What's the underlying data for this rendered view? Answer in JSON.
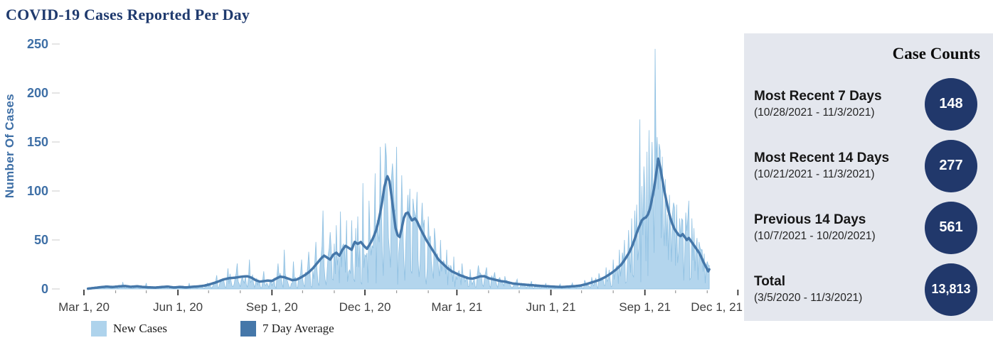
{
  "chart": {
    "title": "COVID-19 Cases Reported Per Day",
    "title_color": "#1f3a6e",
    "y_axis_label": "Number Of Cases",
    "legend": [
      {
        "label": "New Cases",
        "color": "#aed3ec"
      },
      {
        "label": "7 Day Average",
        "color": "#4577a9"
      }
    ]
  },
  "chart_data": {
    "type": "area",
    "title": "COVID-19 Cases Reported Per Day",
    "xlabel": "",
    "ylabel": "Number Of Cases",
    "ylim": [
      0,
      250
    ],
    "y_ticks": [
      0,
      50,
      100,
      150,
      200,
      250
    ],
    "grid": false,
    "legend_position": "bottom",
    "x_tick_labels": [
      "Mar 1, 20",
      "Jun 1, 20",
      "Sep 1, 20",
      "Dec 1, 20",
      "Mar 1, 21",
      "Jun 1, 21",
      "Sep 1, 21",
      "Dec 1, 21"
    ],
    "x_tick_days": [
      0,
      92,
      184,
      275,
      365,
      457,
      549,
      640
    ],
    "x_minor_tick_days": [
      31,
      61,
      122,
      153,
      214,
      245,
      306,
      337,
      396,
      426,
      487,
      518,
      579,
      610
    ],
    "start_day": 4,
    "end_day": 612,
    "series": [
      {
        "name": "New Cases",
        "type": "area",
        "color": "#b3d5ed",
        "edge": "#8fc0e2"
      },
      {
        "name": "7 Day Average",
        "type": "line",
        "color": "#4577a9",
        "width": 3.5,
        "points": [
          [
            4,
            0.3
          ],
          [
            10,
            1
          ],
          [
            16,
            1.8
          ],
          [
            22,
            2.4
          ],
          [
            28,
            2
          ],
          [
            34,
            2.6
          ],
          [
            40,
            3
          ],
          [
            46,
            2.2
          ],
          [
            52,
            2.7
          ],
          [
            58,
            2
          ],
          [
            64,
            1.6
          ],
          [
            70,
            1.4
          ],
          [
            76,
            2
          ],
          [
            82,
            2.4
          ],
          [
            88,
            1.5
          ],
          [
            94,
            2.1
          ],
          [
            100,
            1.6
          ],
          [
            106,
            2.2
          ],
          [
            112,
            2.6
          ],
          [
            118,
            3.4
          ],
          [
            124,
            5
          ],
          [
            130,
            7
          ],
          [
            136,
            9.5
          ],
          [
            142,
            11
          ],
          [
            148,
            11.5
          ],
          [
            154,
            12.5
          ],
          [
            160,
            13
          ],
          [
            164,
            11.5
          ],
          [
            168,
            9
          ],
          [
            172,
            7.5
          ],
          [
            176,
            8
          ],
          [
            180,
            8.5
          ],
          [
            184,
            8.2
          ],
          [
            188,
            10.5
          ],
          [
            192,
            12.5
          ],
          [
            196,
            12
          ],
          [
            200,
            10.5
          ],
          [
            204,
            9
          ],
          [
            208,
            9.5
          ],
          [
            212,
            11.5
          ],
          [
            216,
            14
          ],
          [
            220,
            17
          ],
          [
            224,
            21
          ],
          [
            228,
            26
          ],
          [
            232,
            31
          ],
          [
            235,
            34
          ],
          [
            238,
            32
          ],
          [
            241,
            30
          ],
          [
            244,
            35
          ],
          [
            247,
            37
          ],
          [
            250,
            34
          ],
          [
            253,
            40
          ],
          [
            256,
            44
          ],
          [
            259,
            42
          ],
          [
            262,
            40
          ],
          [
            265,
            48
          ],
          [
            268,
            46
          ],
          [
            271,
            48
          ],
          [
            274,
            44
          ],
          [
            277,
            41
          ],
          [
            280,
            46
          ],
          [
            283,
            52
          ],
          [
            286,
            60
          ],
          [
            288,
            68
          ],
          [
            290,
            78
          ],
          [
            292,
            90
          ],
          [
            294,
            104
          ],
          [
            296,
            112
          ],
          [
            297,
            115
          ],
          [
            299,
            110
          ],
          [
            301,
            95
          ],
          [
            303,
            78
          ],
          [
            305,
            62
          ],
          [
            307,
            55
          ],
          [
            309,
            53
          ],
          [
            311,
            62
          ],
          [
            313,
            72
          ],
          [
            315,
            77
          ],
          [
            317,
            78
          ],
          [
            319,
            74
          ],
          [
            321,
            70
          ],
          [
            324,
            72
          ],
          [
            326,
            69
          ],
          [
            329,
            62
          ],
          [
            332,
            56
          ],
          [
            335,
            50
          ],
          [
            338,
            45
          ],
          [
            341,
            40
          ],
          [
            344,
            35
          ],
          [
            347,
            30
          ],
          [
            350,
            27
          ],
          [
            353,
            24
          ],
          [
            356,
            21
          ],
          [
            360,
            18
          ],
          [
            364,
            16
          ],
          [
            368,
            14
          ],
          [
            372,
            12.5
          ],
          [
            376,
            11
          ],
          [
            380,
            10.5
          ],
          [
            384,
            11.5
          ],
          [
            388,
            13
          ],
          [
            392,
            13
          ],
          [
            396,
            11
          ],
          [
            400,
            10
          ],
          [
            404,
            9
          ],
          [
            408,
            8
          ],
          [
            412,
            7.5
          ],
          [
            416,
            6.5
          ],
          [
            420,
            5.5
          ],
          [
            425,
            5
          ],
          [
            430,
            4.5
          ],
          [
            436,
            4
          ],
          [
            442,
            3.5
          ],
          [
            448,
            3
          ],
          [
            455,
            2.6
          ],
          [
            462,
            2.2
          ],
          [
            468,
            2
          ],
          [
            474,
            2.4
          ],
          [
            480,
            2.8
          ],
          [
            486,
            3.5
          ],
          [
            492,
            5
          ],
          [
            498,
            7
          ],
          [
            504,
            9
          ],
          [
            510,
            12
          ],
          [
            516,
            16
          ],
          [
            521,
            20
          ],
          [
            526,
            25
          ],
          [
            530,
            31
          ],
          [
            534,
            38
          ],
          [
            537,
            45
          ],
          [
            540,
            54
          ],
          [
            542,
            60
          ],
          [
            544,
            65
          ],
          [
            546,
            70
          ],
          [
            548,
            72
          ],
          [
            550,
            73
          ],
          [
            552,
            76
          ],
          [
            554,
            82
          ],
          [
            556,
            92
          ],
          [
            558,
            103
          ],
          [
            559,
            110
          ],
          [
            560,
            117
          ],
          [
            561,
            125
          ],
          [
            562,
            133
          ],
          [
            563,
            129
          ],
          [
            564,
            124
          ],
          [
            566,
            112
          ],
          [
            568,
            100
          ],
          [
            570,
            90
          ],
          [
            572,
            80
          ],
          [
            574,
            72
          ],
          [
            576,
            66
          ],
          [
            578,
            61
          ],
          [
            580,
            58
          ],
          [
            582,
            55
          ],
          [
            584,
            54
          ],
          [
            586,
            56
          ],
          [
            588,
            53
          ],
          [
            590,
            50
          ],
          [
            592,
            52
          ],
          [
            594,
            49
          ],
          [
            596,
            46
          ],
          [
            598,
            43
          ],
          [
            600,
            40
          ],
          [
            602,
            37
          ],
          [
            604,
            33
          ],
          [
            606,
            28
          ],
          [
            608,
            24
          ],
          [
            610,
            20
          ],
          [
            611,
            18
          ],
          [
            612,
            20
          ]
        ]
      }
    ],
    "daily_spikes": [
      [
        38,
        7
      ],
      [
        61,
        6
      ],
      [
        103,
        6
      ],
      [
        130,
        14
      ],
      [
        141,
        21
      ],
      [
        150,
        26
      ],
      [
        162,
        30
      ],
      [
        176,
        18
      ],
      [
        190,
        26
      ],
      [
        196,
        40
      ],
      [
        205,
        28
      ],
      [
        213,
        30
      ],
      [
        220,
        38
      ],
      [
        227,
        48
      ],
      [
        234,
        80
      ],
      [
        241,
        58
      ],
      [
        247,
        65
      ],
      [
        251,
        79
      ],
      [
        257,
        70
      ],
      [
        262,
        70
      ],
      [
        268,
        74
      ],
      [
        273,
        108
      ],
      [
        279,
        90
      ],
      [
        285,
        118
      ],
      [
        290,
        145
      ],
      [
        296,
        136
      ],
      [
        302,
        128
      ],
      [
        306,
        145
      ],
      [
        311,
        116
      ],
      [
        317,
        96
      ],
      [
        322,
        92
      ],
      [
        326,
        99
      ],
      [
        331,
        88
      ],
      [
        337,
        74
      ],
      [
        343,
        62
      ],
      [
        349,
        50
      ],
      [
        355,
        40
      ],
      [
        362,
        33
      ],
      [
        370,
        26
      ],
      [
        378,
        20
      ],
      [
        386,
        24
      ],
      [
        394,
        22
      ],
      [
        402,
        17
      ],
      [
        412,
        13
      ],
      [
        424,
        10
      ],
      [
        438,
        8
      ],
      [
        452,
        6
      ],
      [
        466,
        5
      ],
      [
        478,
        6
      ],
      [
        490,
        9
      ],
      [
        497,
        12
      ],
      [
        504,
        16
      ],
      [
        511,
        22
      ],
      [
        518,
        30
      ],
      [
        524,
        40
      ],
      [
        529,
        50
      ],
      [
        533,
        60
      ],
      [
        536,
        72
      ],
      [
        539,
        80
      ],
      [
        541,
        86
      ],
      [
        544,
        173
      ],
      [
        546,
        105
      ],
      [
        548,
        125
      ],
      [
        551,
        140
      ],
      [
        553,
        162
      ],
      [
        556,
        150
      ],
      [
        559,
        245
      ],
      [
        561,
        155
      ],
      [
        563,
        148
      ],
      [
        566,
        135
      ],
      [
        569,
        112
      ],
      [
        573,
        96
      ],
      [
        577,
        88
      ],
      [
        580,
        86
      ],
      [
        583,
        72
      ],
      [
        586,
        70
      ],
      [
        589,
        78
      ],
      [
        592,
        90
      ],
      [
        595,
        72
      ],
      [
        597,
        62
      ],
      [
        600,
        52
      ],
      [
        602,
        48
      ],
      [
        605,
        40
      ],
      [
        607,
        36
      ],
      [
        610,
        28
      ],
      [
        612,
        24
      ]
    ]
  },
  "panel": {
    "title": "Case Counts",
    "background": "#e4e7ee",
    "circle_color": "#21386b",
    "stats": [
      {
        "label": "Most Recent 7 Days",
        "range": "(10/28/2021 - 11/3/2021)",
        "value": "148"
      },
      {
        "label": "Most Recent 14 Days",
        "range": "(10/21/2021 - 11/3/2021)",
        "value": "277"
      },
      {
        "label": "Previous 14 Days",
        "range": "(10/7/2021 - 10/20/2021)",
        "value": "561"
      },
      {
        "label": "Total",
        "range": "(3/5/2020 - 11/3/2021)",
        "value": "13,813"
      }
    ]
  }
}
